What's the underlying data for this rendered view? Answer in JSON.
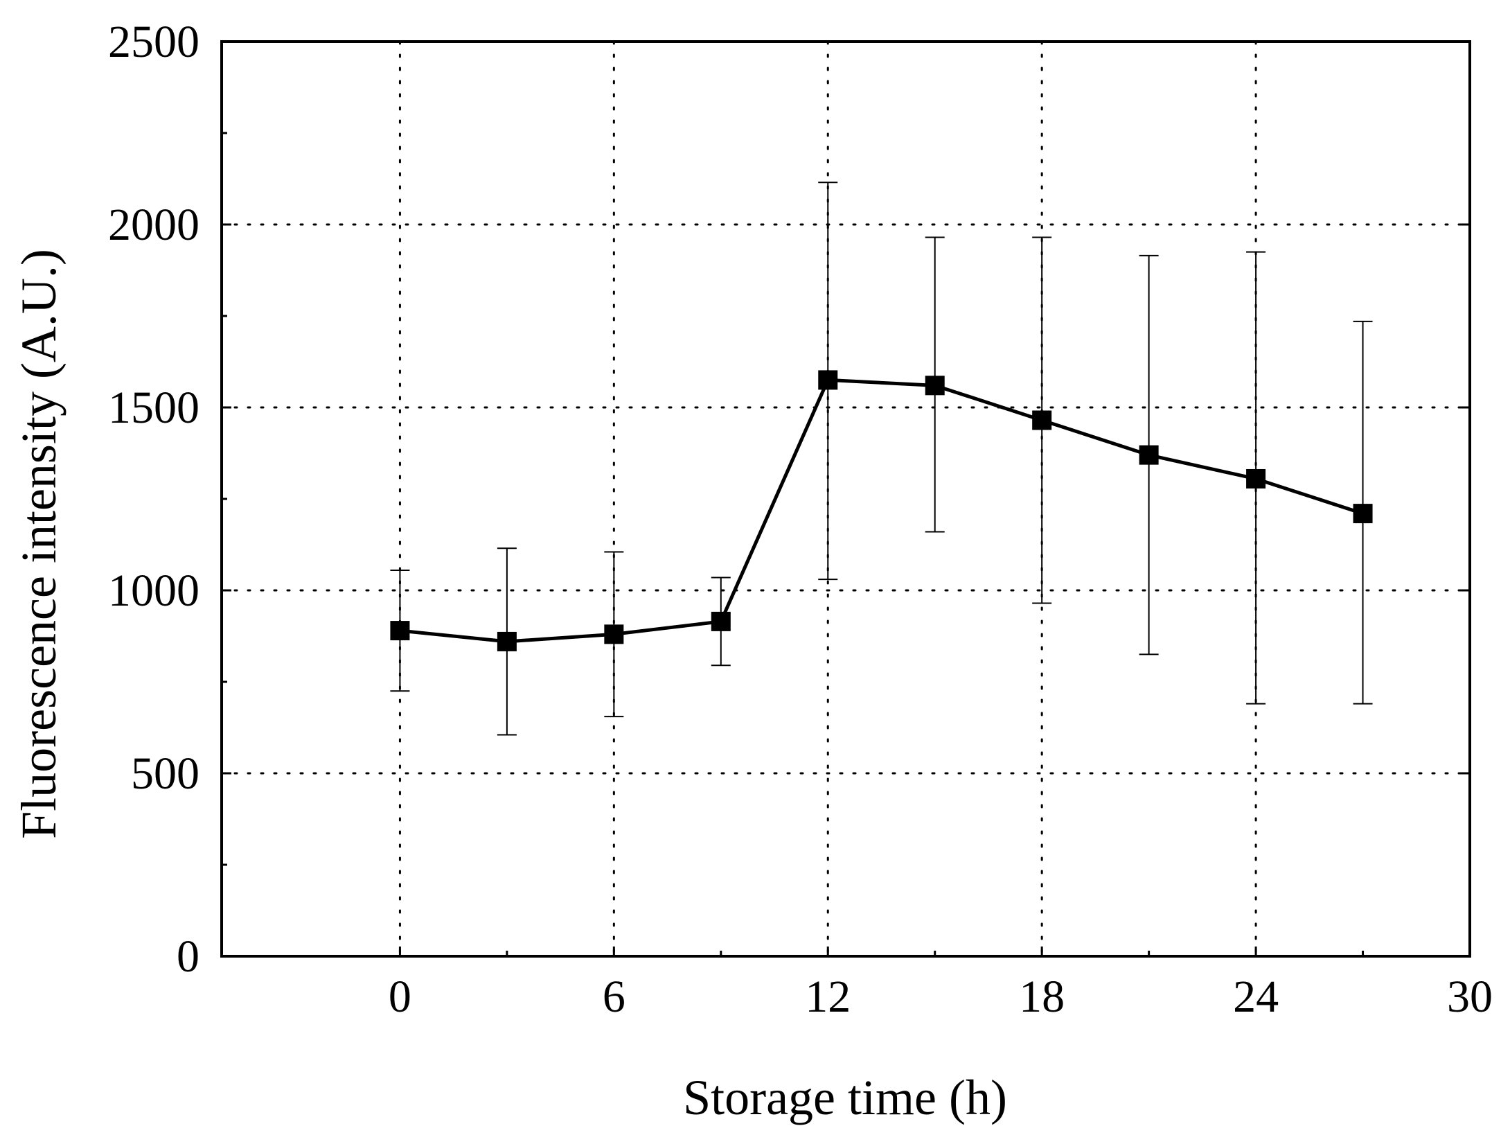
{
  "chart_data": {
    "type": "line",
    "xlabel": "Storage time (h)",
    "ylabel": "Fluorescence intensity (A.U.)",
    "xlim": [
      -5,
      30
    ],
    "ylim": [
      0,
      2500
    ],
    "xticks": [
      0,
      6,
      12,
      18,
      24,
      30
    ],
    "xtick_labels": [
      "0",
      "6",
      "12",
      "18",
      "24",
      "30"
    ],
    "yticks": [
      0,
      500,
      1000,
      1500,
      2000,
      2500
    ],
    "ytick_labels": [
      "0",
      "500",
      "1000",
      "1500",
      "2000",
      "2500"
    ],
    "grid": true,
    "legend": false,
    "marker": "square",
    "color": "#000000",
    "series": [
      {
        "x": [
          0,
          3,
          6,
          9,
          12,
          15,
          18,
          21,
          24,
          27
        ],
        "y": [
          890,
          860,
          880,
          915,
          1575,
          1560,
          1465,
          1370,
          1305,
          1210
        ],
        "error_low": [
          725,
          605,
          655,
          795,
          1030,
          1160,
          965,
          825,
          690,
          690
        ],
        "error_high": [
          1055,
          1115,
          1105,
          1035,
          2115,
          1965,
          1965,
          1915,
          1925,
          1735
        ]
      }
    ]
  }
}
